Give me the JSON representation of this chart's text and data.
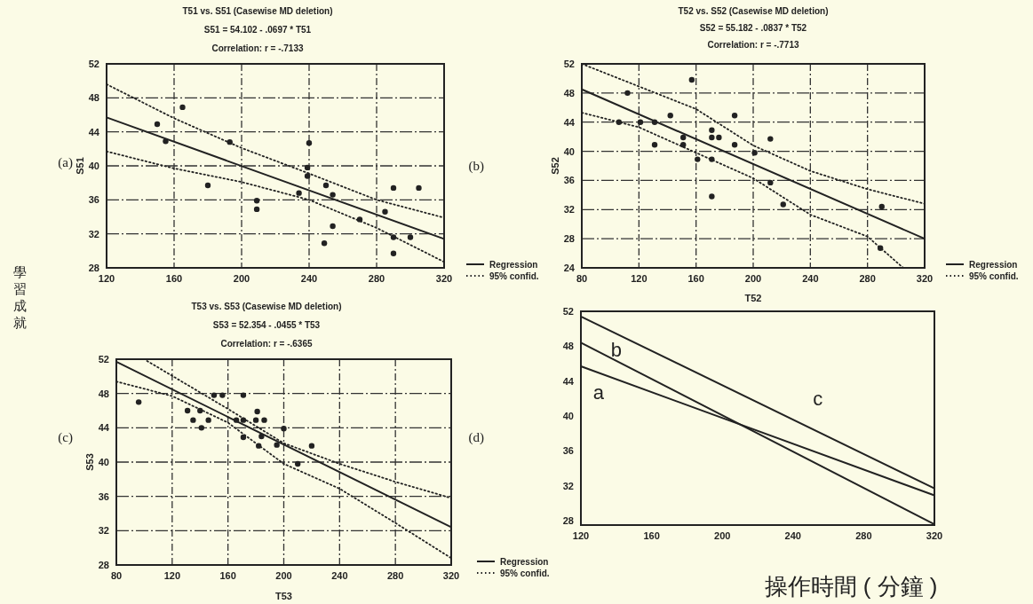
{
  "chart_data": [
    {
      "type": "scatter",
      "title": "T51 vs. S51 (Casewise MD deletion)",
      "subtitle": "S51 = 54.102 - .0697 * T51",
      "annotations": [
        "Correlation: r = -.7133",
        "(a)"
      ],
      "ylabel": "S51",
      "xlim": [
        120,
        320
      ],
      "xticks": [
        120,
        160,
        200,
        240,
        280,
        320
      ],
      "ylim": [
        28,
        52
      ],
      "yticks": [
        28,
        32,
        36,
        40,
        44,
        48,
        52
      ],
      "grid": true,
      "legend": "bottom right",
      "series": [
        {
          "type": "scatter",
          "marker": "circle",
          "color": "#222222",
          "x": [
            150,
            155,
            165,
            180,
            193,
            209,
            209,
            234,
            240,
            239,
            239,
            250,
            249,
            254,
            254,
            270,
            285,
            290,
            305,
            290,
            300,
            290
          ],
          "values": [
            44.9,
            42.9,
            46.9,
            37.7,
            42.8,
            35.9,
            34.9,
            36.8,
            42.7,
            39.8,
            38.8,
            37.7,
            30.9,
            36.6,
            32.9,
            33.7,
            34.6,
            37.4,
            37.4,
            31.6,
            31.6,
            29.7
          ]
        },
        {
          "type": "line",
          "name": "Regression",
          "line_style": "solid",
          "color": "#222222",
          "x": [
            120,
            320
          ],
          "values": [
            45.7,
            31.4
          ]
        },
        {
          "type": "line",
          "name": "95% confid.",
          "line_style": "dotted",
          "color": "#222222",
          "x": [
            120,
            160,
            200,
            240,
            280,
            320
          ],
          "values": [
            49.6,
            45.6,
            42.1,
            39.1,
            36,
            33.9
          ]
        },
        {
          "type": "line",
          "line_style": "dotted",
          "color": "#222222",
          "x": [
            120,
            160,
            200,
            240,
            280,
            320
          ],
          "values": [
            41.7,
            39.7,
            38.1,
            36,
            32.7,
            28.7
          ]
        }
      ]
    },
    {
      "type": "scatter",
      "title": "T52 vs. S52 (Casewise MD deletion)",
      "subtitle": "S52 = 55.182 - .0837 * T52",
      "annotations": [
        "Correlation: r = -.7713",
        "(b)"
      ],
      "xlabel": "T52",
      "ylabel": "S52",
      "xlim": [
        80,
        320
      ],
      "xticks": [
        80,
        120,
        160,
        200,
        240,
        280,
        320
      ],
      "ylim": [
        24,
        52
      ],
      "yticks": [
        24,
        28,
        32,
        36,
        40,
        44,
        48,
        52
      ],
      "grid": true,
      "legend": "bottom right",
      "series": [
        {
          "type": "scatter",
          "marker": "circle",
          "color": "#222222",
          "x": [
            112,
            106,
            121,
            131,
            131,
            142,
            151,
            151,
            157,
            161,
            171,
            171,
            176,
            171,
            171,
            187,
            187,
            201,
            212,
            212,
            221,
            290,
            289
          ],
          "values": [
            48,
            44,
            44,
            44,
            40.9,
            44.9,
            41.9,
            40.9,
            49.8,
            38.9,
            42.9,
            41.9,
            41.9,
            38.9,
            33.8,
            44.9,
            40.9,
            39.8,
            41.7,
            35.7,
            32.7,
            32.4,
            26.7
          ]
        },
        {
          "type": "line",
          "name": "Regression",
          "line_style": "solid",
          "color": "#222222",
          "x": [
            80,
            320
          ],
          "values": [
            48.5,
            28
          ]
        },
        {
          "type": "line",
          "name": "95% confid.",
          "line_style": "dotted",
          "color": "#222222",
          "x": [
            80,
            160,
            200,
            240,
            280,
            320
          ],
          "values": [
            52,
            45.8,
            40.8,
            37.3,
            34.8,
            32.8
          ]
        },
        {
          "type": "line",
          "line_style": "dotted",
          "color": "#222222",
          "x": [
            80,
            120,
            160,
            200,
            240,
            280,
            305
          ],
          "values": [
            45.3,
            43.3,
            39.8,
            36.3,
            31.3,
            28.3,
            24
          ]
        }
      ]
    },
    {
      "type": "scatter",
      "title": "T53 vs. S53 (Casewise MD deletion)",
      "subtitle": "S53 = 52.354 - .0455 * T53",
      "annotations": [
        "Correlation: r = -.6365",
        "(c)"
      ],
      "xlabel": "T53",
      "ylabel": "S53",
      "xlim": [
        80,
        320
      ],
      "xticks": [
        80,
        120,
        160,
        200,
        240,
        280,
        320
      ],
      "ylim": [
        28,
        52
      ],
      "yticks": [
        28,
        32,
        36,
        40,
        44,
        48,
        52
      ],
      "grid": true,
      "legend": "bottom right",
      "series": [
        {
          "type": "scatter",
          "marker": "circle",
          "color": "#222222",
          "x": [
            96,
            131,
            140,
            135,
            146,
            141,
            150,
            156,
            171,
            166,
            171,
            171,
            181,
            180,
            186,
            184,
            182,
            195,
            200,
            210,
            220
          ],
          "values": [
            47,
            46,
            46,
            44.9,
            44.9,
            44,
            47.8,
            47.8,
            47.8,
            44.9,
            44.9,
            42.9,
            45.9,
            44.9,
            44.9,
            43,
            41.9,
            42,
            43.9,
            39.8,
            41.9
          ]
        },
        {
          "type": "line",
          "name": "Regression",
          "line_style": "solid",
          "color": "#222222",
          "x": [
            80,
            320
          ],
          "values": [
            51.7,
            32.4
          ]
        },
        {
          "type": "line",
          "name": "95% confid.",
          "line_style": "dotted",
          "color": "#222222",
          "x": [
            102,
            160,
            200,
            240,
            280,
            320
          ],
          "values": [
            51.8,
            46.2,
            42.2,
            39.8,
            37.7,
            35.8
          ]
        },
        {
          "type": "line",
          "line_style": "dotted",
          "color": "#222222",
          "x": [
            80,
            120,
            160,
            200,
            240,
            280,
            320
          ],
          "values": [
            49.4,
            47.7,
            44.6,
            39.8,
            36.9,
            32.9,
            28.8
          ]
        }
      ]
    },
    {
      "type": "line",
      "xlabel": "操作時間 ( 分鐘 )",
      "ylabel": "學習成就",
      "annotations": [
        "(d)"
      ],
      "xlim": [
        120,
        320
      ],
      "xticks": [
        120,
        160,
        200,
        240,
        280,
        320
      ],
      "ylim": [
        27.5,
        52
      ],
      "yticks": [
        28,
        32,
        36,
        40,
        44,
        48,
        52
      ],
      "series": [
        {
          "name": "a",
          "color": "#222222",
          "x": [
            120,
            320
          ],
          "values": [
            45.7,
            30.9
          ]
        },
        {
          "name": "b",
          "color": "#222222",
          "x": [
            120,
            320
          ],
          "values": [
            48.4,
            27.6
          ]
        },
        {
          "name": "c",
          "color": "#222222",
          "x": [
            120,
            320
          ],
          "values": [
            51.4,
            31.7
          ]
        }
      ]
    }
  ]
}
